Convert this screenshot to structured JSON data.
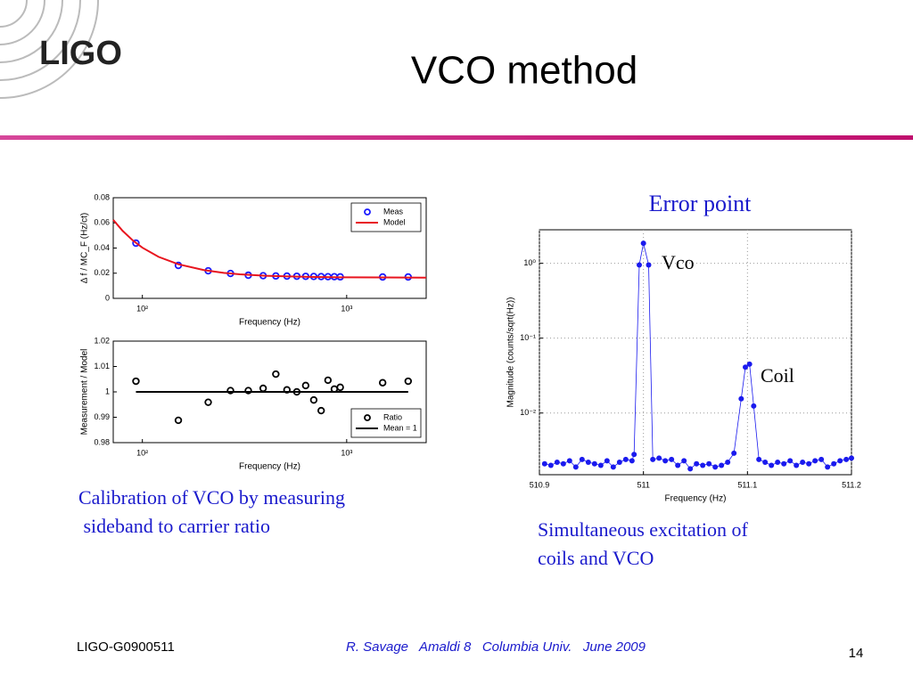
{
  "slide": {
    "logo": "LIGO",
    "title": "VCO method",
    "caption_left": [
      "Calibration of VCO by measuring",
      " sideband to carrier ratio"
    ],
    "caption_right": [
      "Simultaneous excitation of",
      "coils and VCO"
    ],
    "footer_left": "LIGO-G0900511",
    "footer_center": "R. Savage   Amaldi 8   Columbia Univ.   June 2009",
    "page_number": "14"
  },
  "chart_data": [
    {
      "type": "scatter",
      "xlabel": "Frequency (Hz)",
      "ylabel": "Δ f / MC_F (Hz/ct)",
      "xlog": true,
      "xlim": [
        72,
        2450
      ],
      "xticks": [
        {
          "value": 100,
          "label": "10²"
        },
        {
          "value": 1000,
          "label": "10³"
        }
      ],
      "ylim": [
        0,
        0.08
      ],
      "yticks": [
        0,
        0.02,
        0.04,
        0.06,
        0.08
      ],
      "grid": false,
      "legend": "upper right",
      "series": [
        {
          "name": "Meas",
          "style": "markers",
          "color": "#1a1aff",
          "x": [
            93,
            150,
            210,
            270,
            330,
            390,
            450,
            510,
            570,
            630,
            690,
            750,
            810,
            870,
            930,
            1500,
            2000
          ],
          "values": [
            0.0439,
            0.0262,
            0.0219,
            0.0198,
            0.0184,
            0.018,
            0.0178,
            0.0177,
            0.0176,
            0.0175,
            0.0174,
            0.0173,
            0.0172,
            0.0172,
            0.0171,
            0.017,
            0.017
          ]
        },
        {
          "name": "Model",
          "style": "line",
          "color": "#e8141e",
          "x": [
            72,
            80,
            90,
            100,
            120,
            150,
            200,
            250,
            300,
            400,
            500,
            700,
            1000,
            1500,
            2450
          ],
          "values": [
            0.0624,
            0.0537,
            0.0459,
            0.0403,
            0.033,
            0.0271,
            0.0225,
            0.0203,
            0.0191,
            0.018,
            0.0175,
            0.017,
            0.0167,
            0.0166,
            0.0165
          ]
        }
      ]
    },
    {
      "type": "scatter",
      "xlabel": "Frequency (Hz)",
      "ylabel": "Measurement / Model",
      "xlog": true,
      "xlim": [
        72,
        2450
      ],
      "xticks": [
        {
          "value": 100,
          "label": "10²"
        },
        {
          "value": 1000,
          "label": "10³"
        }
      ],
      "ylim": [
        0.98,
        1.02
      ],
      "yticks": [
        0.98,
        0.99,
        1,
        1.01,
        1.02
      ],
      "grid": false,
      "legend": "lower right",
      "series": [
        {
          "name": "Ratio",
          "style": "markers",
          "color": "#000000",
          "x": [
            93,
            150,
            210,
            270,
            330,
            390,
            450,
            510,
            570,
            630,
            690,
            750,
            810,
            870,
            930,
            1500,
            2000
          ],
          "values": [
            1.0042,
            0.9888,
            0.9959,
            1.0005,
            1.0005,
            1.0014,
            1.007,
            1.0008,
            1,
            1.0025,
            0.9968,
            0.9926,
            1.0046,
            1.0011,
            1.0018,
            1.0036,
            1.0042
          ]
        },
        {
          "name": "Mean = 1",
          "style": "line",
          "color": "#000000",
          "x": [
            93,
            2000
          ],
          "values": [
            1,
            1
          ]
        }
      ]
    },
    {
      "type": "line",
      "title": "Error point",
      "xlabel": "Frequency (Hz)",
      "ylabel": "Magnitude (counts/sqrt(Hz))",
      "xlim": [
        510.9,
        511.2
      ],
      "xticks": [
        510.9,
        511,
        511.1,
        511.2
      ],
      "ylog": true,
      "ylim": [
        0.0015,
        2.8
      ],
      "yticks": [
        {
          "value": 0.01,
          "label": "10⁻²"
        },
        {
          "value": 0.1,
          "label": "10⁻¹"
        },
        {
          "value": 1,
          "label": "10⁰"
        }
      ],
      "grid": true,
      "annotations": [
        "Vco",
        "Coil"
      ],
      "series": [
        {
          "style": "line+markers",
          "color": "#1a1aee",
          "x": [
            510.905,
            510.911,
            510.917,
            510.923,
            510.929,
            510.935,
            510.941,
            510.947,
            510.953,
            510.959,
            510.965,
            510.971,
            510.977,
            510.983,
            510.989,
            510.991,
            510.996,
            511.0,
            511.005,
            511.009,
            511.015,
            511.021,
            511.027,
            511.033,
            511.039,
            511.045,
            511.051,
            511.057,
            511.063,
            511.069,
            511.075,
            511.081,
            511.087,
            511.094,
            511.098,
            511.102,
            511.106,
            511.111,
            511.117,
            511.123,
            511.129,
            511.135,
            511.141,
            511.147,
            511.153,
            511.159,
            511.165,
            511.171,
            511.177,
            511.183,
            511.189,
            511.195,
            511.2
          ],
          "values": [
            0.0021,
            0.002,
            0.0022,
            0.0021,
            0.0023,
            0.0019,
            0.0024,
            0.0022,
            0.0021,
            0.002,
            0.0023,
            0.0019,
            0.0022,
            0.0024,
            0.0023,
            0.0028,
            0.95,
            1.85,
            0.95,
            0.0024,
            0.0025,
            0.0023,
            0.0024,
            0.002,
            0.0023,
            0.0018,
            0.0021,
            0.002,
            0.0021,
            0.0019,
            0.002,
            0.0022,
            0.0029,
            0.0155,
            0.041,
            0.045,
            0.0124,
            0.0024,
            0.0022,
            0.002,
            0.0022,
            0.0021,
            0.0023,
            0.002,
            0.0022,
            0.0021,
            0.0023,
            0.0024,
            0.0019,
            0.0021,
            0.0023,
            0.0024,
            0.0025
          ]
        }
      ]
    }
  ]
}
